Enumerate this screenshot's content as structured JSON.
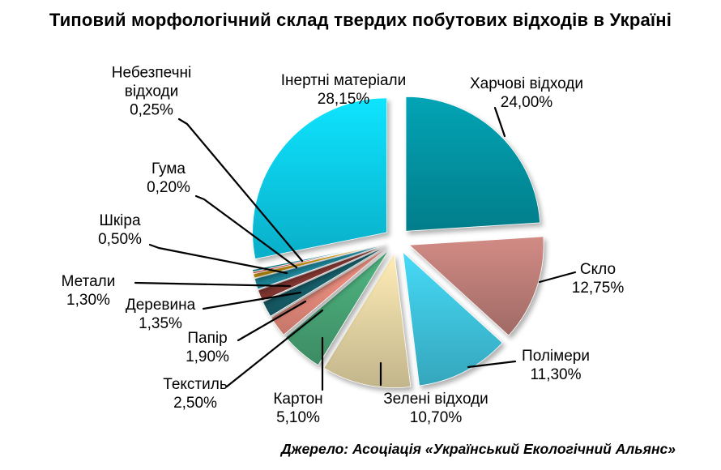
{
  "title": "Типовий морфологічний склад твердих побутових відходів в Україні",
  "source": "Джерело: Асоціація «Український Екологічний Альянс»",
  "chart_data": {
    "type": "pie",
    "title": "Типовий морфологічний склад твердих побутових відходів в Україні",
    "unit": "%",
    "decimal_separator": ",",
    "start_angle_deg": 0,
    "direction": "clockwise",
    "exploded": true,
    "legend_position": "none",
    "total": 100,
    "slices": [
      {
        "label": "Харчові відходи",
        "value": 24.0,
        "display": "24,00%",
        "color": "#0291A0"
      },
      {
        "label": "Скло",
        "value": 12.75,
        "display": "12,75%",
        "color": "#BA7B76"
      },
      {
        "label": "Полімери",
        "value": 11.3,
        "display": "11,30%",
        "color": "#3EC1DB"
      },
      {
        "label": "Зелені відходи",
        "value": 10.7,
        "display": "10,70%",
        "color": "#E2D2A2"
      },
      {
        "label": "Картон",
        "value": 5.1,
        "display": "5,10%",
        "color": "#47A273"
      },
      {
        "label": "Текстиль",
        "value": 2.5,
        "display": "2,50%",
        "color": "#E4897A"
      },
      {
        "label": "Папір",
        "value": 1.9,
        "display": "1,90%",
        "color": "#17616C"
      },
      {
        "label": "Деревина",
        "value": 1.35,
        "display": "1,35%",
        "color": "#8E3B35"
      },
      {
        "label": "Метали",
        "value": 1.3,
        "display": "1,30%",
        "color": "#2191A6"
      },
      {
        "label": "Шкіра",
        "value": 0.5,
        "display": "0,50%",
        "color": "#DCA513"
      },
      {
        "label": "Гума",
        "value": 0.2,
        "display": "0,20%",
        "color": "#DF2020"
      },
      {
        "label": "Небезпечні відходи",
        "value": 0.25,
        "display": "0,25%",
        "color": "#127F8C"
      },
      {
        "label": "Інертні матеріали",
        "value": 28.15,
        "display": "28,15%",
        "color": "#0CCAE8"
      }
    ]
  }
}
